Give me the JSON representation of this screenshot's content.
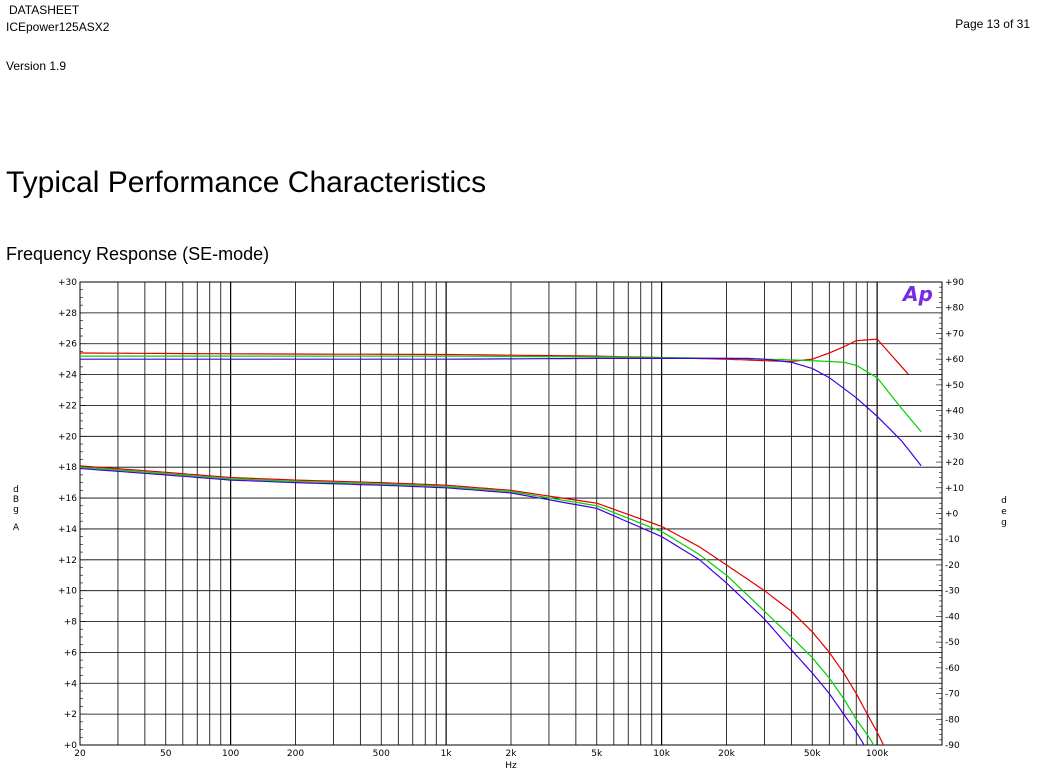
{
  "header": {
    "doc_type": "DATASHEET",
    "product": "ICEpower125ASX2",
    "version": "Version 1.9",
    "page": "Page 13 of 31"
  },
  "section_title": "Typical Performance Characteristics",
  "subsection_title": "Frequency Response (SE-mode)",
  "logo_text": "Ap",
  "chart_data": {
    "type": "line",
    "title": "",
    "xlabel": "Hz",
    "ylabel_left": "dBgA",
    "ylabel_right": "deg",
    "x_scale": "log",
    "xlim": [
      20,
      200000
    ],
    "ylim_left": [
      0,
      30
    ],
    "ylim_right": [
      -90,
      90
    ],
    "grid": true,
    "x_tick_labels": [
      {
        "v": 20,
        "label": "20"
      },
      {
        "v": 50,
        "label": "50"
      },
      {
        "v": 100,
        "label": "100"
      },
      {
        "v": 200,
        "label": "200"
      },
      {
        "v": 500,
        "label": "500"
      },
      {
        "v": 1000,
        "label": "1k"
      },
      {
        "v": 2000,
        "label": "2k"
      },
      {
        "v": 5000,
        "label": "5k"
      },
      {
        "v": 10000,
        "label": "10k"
      },
      {
        "v": 20000,
        "label": "20k"
      },
      {
        "v": 50000,
        "label": "50k"
      },
      {
        "v": 100000,
        "label": "100k"
      }
    ],
    "y_left_tick_labels": [
      {
        "v": 0,
        "label": "+0"
      },
      {
        "v": 2,
        "label": "+2"
      },
      {
        "v": 4,
        "label": "+4"
      },
      {
        "v": 6,
        "label": "+6"
      },
      {
        "v": 8,
        "label": "+8"
      },
      {
        "v": 10,
        "label": "+10"
      },
      {
        "v": 12,
        "label": "+12"
      },
      {
        "v": 14,
        "label": "+14"
      },
      {
        "v": 16,
        "label": "+16"
      },
      {
        "v": 18,
        "label": "+18"
      },
      {
        "v": 20,
        "label": "+20"
      },
      {
        "v": 22,
        "label": "+22"
      },
      {
        "v": 24,
        "label": "+24"
      },
      {
        "v": 26,
        "label": "+26"
      },
      {
        "v": 28,
        "label": "+28"
      },
      {
        "v": 30,
        "label": "+30"
      }
    ],
    "y_right_tick_labels": [
      {
        "v": 90,
        "label": "+90"
      },
      {
        "v": 80,
        "label": "+80"
      },
      {
        "v": 70,
        "label": "+70"
      },
      {
        "v": 60,
        "label": "+60"
      },
      {
        "v": 50,
        "label": "+50"
      },
      {
        "v": 40,
        "label": "+40"
      },
      {
        "v": 30,
        "label": "+30"
      },
      {
        "v": 20,
        "label": "+20"
      },
      {
        "v": 10,
        "label": "+10"
      },
      {
        "v": 0,
        "label": "+0"
      },
      {
        "v": -10,
        "label": "-10"
      },
      {
        "v": -20,
        "label": "-20"
      },
      {
        "v": -30,
        "label": "-30"
      },
      {
        "v": -40,
        "label": "-40"
      },
      {
        "v": -50,
        "label": "-50"
      },
      {
        "v": -60,
        "label": "-60"
      },
      {
        "v": -70,
        "label": "-70"
      },
      {
        "v": -80,
        "label": "-80"
      },
      {
        "v": -90,
        "label": "-90"
      }
    ],
    "series": [
      {
        "color": "#e00000",
        "axis": "left",
        "x": [
          20,
          100,
          1000,
          5000,
          10000,
          20000,
          30000,
          40000,
          50000,
          60000,
          70000,
          80000,
          100000,
          140000
        ],
        "y": [
          25.4,
          25.35,
          25.3,
          25.2,
          25.1,
          25.0,
          24.9,
          24.85,
          25.0,
          25.4,
          25.8,
          26.2,
          26.3,
          24.0
        ]
      },
      {
        "color": "#00d000",
        "axis": "left",
        "x": [
          20,
          100,
          1000,
          5000,
          10000,
          20000,
          30000,
          40000,
          50000,
          60000,
          70000,
          80000,
          100000,
          130000,
          160000
        ],
        "y": [
          25.2,
          25.2,
          25.2,
          25.15,
          25.1,
          25.05,
          25.0,
          24.95,
          24.9,
          24.85,
          24.8,
          24.6,
          23.8,
          21.8,
          20.3
        ]
      },
      {
        "color": "#4000e0",
        "axis": "left",
        "x": [
          20,
          100,
          1000,
          5000,
          10000,
          20000,
          25000,
          30000,
          40000,
          50000,
          60000,
          80000,
          100000,
          130000,
          160000
        ],
        "y": [
          25.0,
          25.0,
          25.0,
          25.05,
          25.05,
          25.05,
          25.05,
          25.0,
          24.8,
          24.4,
          23.8,
          22.5,
          21.3,
          19.7,
          18.1
        ]
      },
      {
        "color": "#e00000",
        "axis": "right",
        "x": [
          20,
          50,
          100,
          200,
          500,
          1000,
          2000,
          5000,
          10000,
          15000,
          20000,
          30000,
          40000,
          50000,
          60000,
          70000,
          80000,
          90000,
          100000,
          110000
        ],
        "y": [
          18.5,
          16,
          14,
          13,
          12,
          11,
          9,
          4,
          -5,
          -13,
          -20,
          -30,
          -38,
          -46,
          -54,
          -62,
          -70,
          -78,
          -85,
          -92
        ]
      },
      {
        "color": "#00d000",
        "axis": "right",
        "x": [
          20,
          50,
          100,
          200,
          500,
          1000,
          2000,
          5000,
          10000,
          15000,
          20000,
          30000,
          40000,
          50000,
          60000,
          70000,
          80000,
          90000,
          100000
        ],
        "y": [
          18,
          15.5,
          13.5,
          12.5,
          11.5,
          10.5,
          8.5,
          3,
          -7,
          -16,
          -24,
          -38,
          -48,
          -56,
          -64,
          -72,
          -80,
          -86,
          -92
        ]
      },
      {
        "color": "#4000e0",
        "axis": "right",
        "x": [
          20,
          50,
          100,
          200,
          500,
          1000,
          2000,
          5000,
          10000,
          15000,
          20000,
          30000,
          40000,
          50000,
          60000,
          70000,
          80000,
          90000
        ],
        "y": [
          17.5,
          15,
          13,
          12,
          11,
          10,
          8,
          2,
          -9,
          -18,
          -27,
          -41,
          -53,
          -62,
          -70,
          -78,
          -85,
          -92
        ]
      }
    ]
  }
}
